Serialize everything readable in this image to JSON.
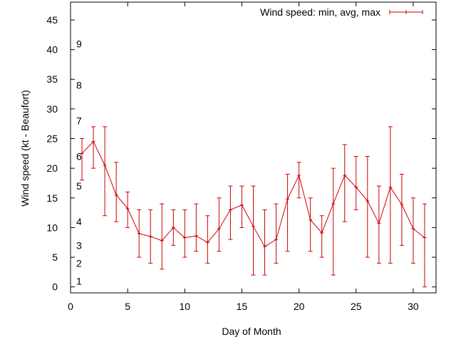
{
  "chart_data": {
    "type": "line",
    "title": "",
    "xlabel": "Day of Month",
    "ylabel": "Wind speed (kt - Beaufort)",
    "xlim": [
      0,
      32
    ],
    "ylim": [
      -1,
      48
    ],
    "x_ticks": [
      0,
      5,
      10,
      15,
      20,
      25,
      30
    ],
    "y_ticks": [
      0,
      5,
      10,
      15,
      20,
      25,
      30,
      35,
      40,
      45
    ],
    "grid": false,
    "legend_position": "top-right",
    "series": [
      {
        "name": "Wind speed: min, avg, max",
        "color": "#cc0000",
        "x": [
          1,
          2,
          3,
          4,
          5,
          6,
          7,
          8,
          9,
          10,
          11,
          12,
          13,
          14,
          15,
          16,
          17,
          18,
          19,
          20,
          21,
          22,
          23,
          24,
          25,
          26,
          27,
          28,
          29,
          30,
          31
        ],
        "avg": [
          22.5,
          24.5,
          20.5,
          15.5,
          13.2,
          9.0,
          8.5,
          7.8,
          10.0,
          8.3,
          8.6,
          7.5,
          9.8,
          13.0,
          13.8,
          10.2,
          6.8,
          8.0,
          14.8,
          18.8,
          11.3,
          9.1,
          14.0,
          18.8,
          16.8,
          14.5,
          10.7,
          16.8,
          13.9,
          9.8,
          8.3
        ],
        "min": [
          18,
          20,
          12,
          11,
          10,
          5,
          4,
          3,
          7,
          5,
          6,
          4,
          6,
          8,
          10,
          2,
          2,
          4,
          6,
          15,
          6,
          5,
          2,
          11,
          13,
          5,
          4,
          4,
          7,
          4,
          0
        ],
        "max": [
          25,
          27,
          27,
          21,
          16,
          13,
          13,
          14,
          13,
          13,
          14,
          12,
          15,
          17,
          17,
          17,
          13,
          14,
          19,
          21,
          15,
          12,
          20,
          24,
          22,
          22,
          17,
          27,
          19,
          15,
          14
        ]
      }
    ],
    "annotations": [
      {
        "text": "1",
        "y": 1
      },
      {
        "text": "2",
        "y": 4
      },
      {
        "text": "3",
        "y": 7
      },
      {
        "text": "4",
        "y": 11
      },
      {
        "text": "5",
        "y": 17
      },
      {
        "text": "6",
        "y": 22
      },
      {
        "text": "7",
        "y": 28
      },
      {
        "text": "8",
        "y": 34
      },
      {
        "text": "9",
        "y": 41
      }
    ]
  }
}
